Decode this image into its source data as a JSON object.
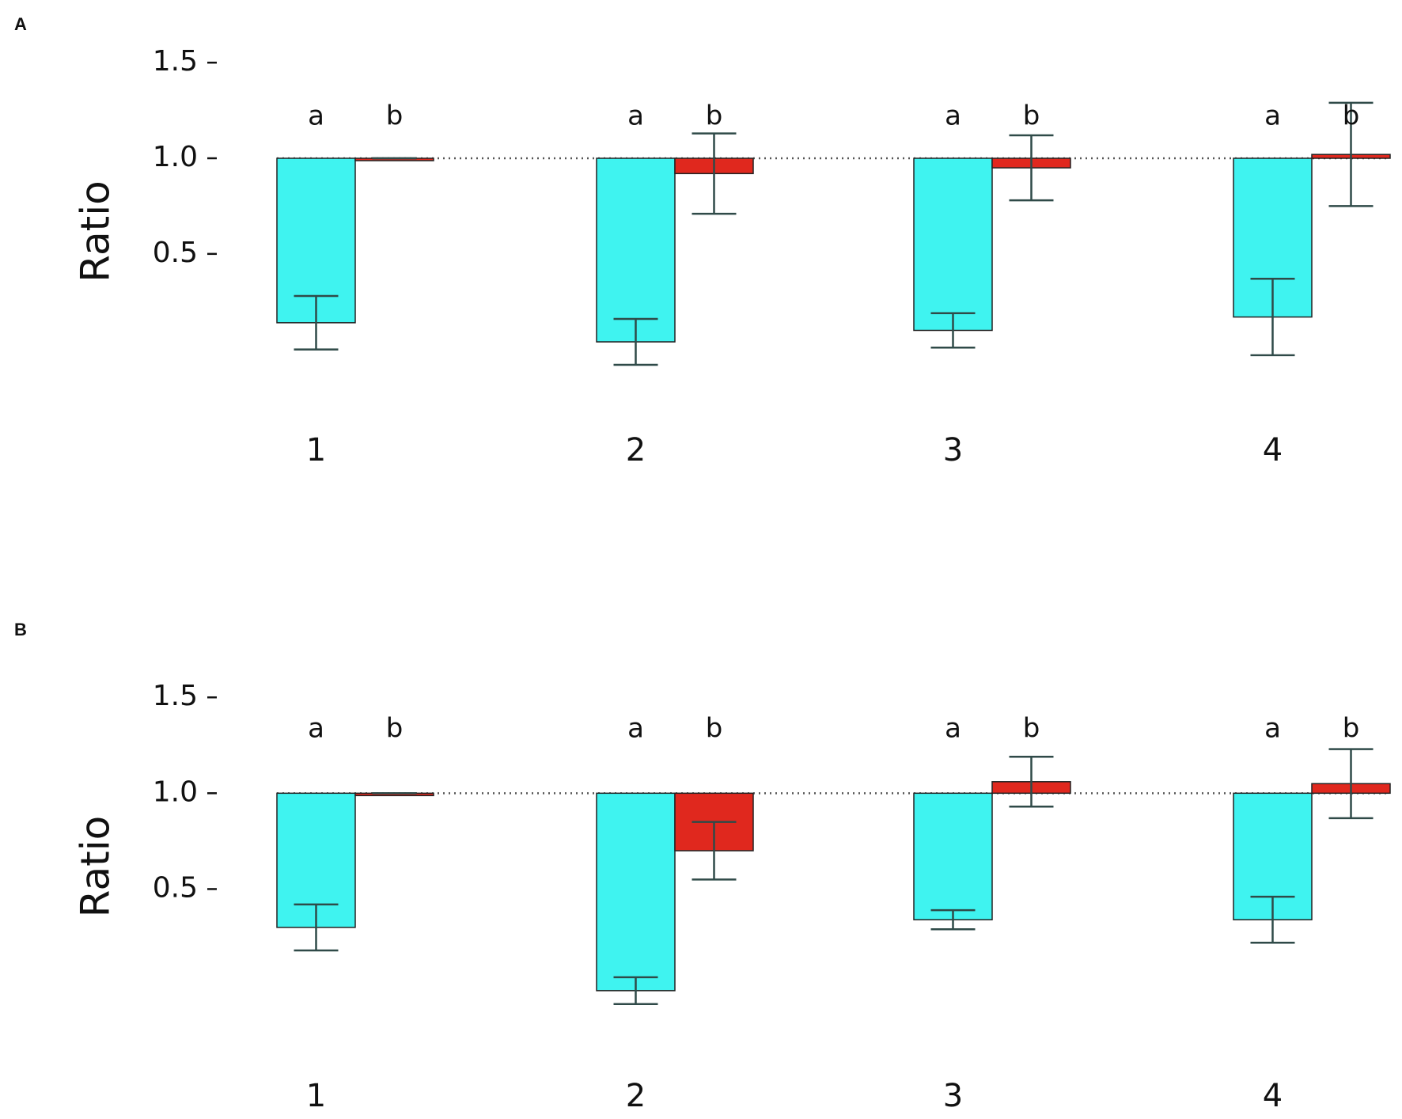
{
  "chart_data": [
    {
      "type": "bar",
      "label": "A",
      "y_label": "Ratio",
      "categories": [
        "1",
        "2",
        "3",
        "4"
      ],
      "baseline": 1,
      "series": [
        {
          "name": "a",
          "color": "#3ff3f0",
          "values": [
            0.14,
            0.04,
            0.1,
            0.17
          ],
          "errors": [
            0.14,
            0.12,
            0.09,
            0.2
          ]
        },
        {
          "name": "b",
          "color": "#e0281e",
          "values": [
            1.0,
            0.92,
            0.95,
            1.02
          ],
          "errors": [
            0,
            0.21,
            0.17,
            0.27
          ]
        }
      ],
      "ylim": [
        -0.2,
        1.6
      ],
      "yticks": [
        {
          "value": 0.5,
          "label": "0.5"
        },
        {
          "value": 1,
          "label": "1.0"
        },
        {
          "value": 1.5,
          "label": "1.5"
        }
      ]
    },
    {
      "type": "bar",
      "label": "B",
      "y_label": "Ratio",
      "categories": [
        "1",
        "2",
        "3",
        "4"
      ],
      "baseline": 1,
      "series": [
        {
          "name": "a",
          "color": "#3ff3f0",
          "values": [
            0.3,
            -0.03,
            0.34,
            0.34
          ],
          "errors": [
            0.12,
            0.07,
            0.05,
            0.12
          ]
        },
        {
          "name": "b",
          "color": "#e0281e",
          "values": [
            1.0,
            0.7,
            1.06,
            1.05
          ],
          "errors": [
            0,
            0.15,
            0.13,
            0.18
          ]
        }
      ],
      "ylim": [
        -0.2,
        1.6
      ],
      "yticks": [
        {
          "value": 0.5,
          "label": "0.5"
        },
        {
          "value": 1,
          "label": "1.0"
        },
        {
          "value": 1.5,
          "label": "1.5"
        }
      ]
    }
  ]
}
